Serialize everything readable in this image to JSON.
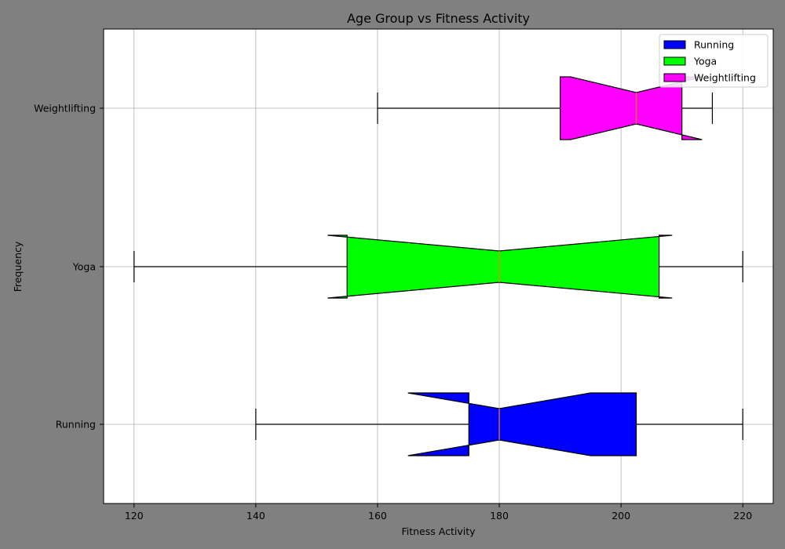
{
  "chart_data": {
    "type": "boxplot",
    "orientation": "horizontal",
    "notched": true,
    "title": "Age Group vs Fitness Activity",
    "xlabel": "Fitness Activity",
    "ylabel": "Frequency",
    "xlim": [
      115,
      225
    ],
    "xticks": [
      120,
      140,
      160,
      180,
      200,
      220
    ],
    "grid": true,
    "legend_position": "top-right",
    "background_color": "#808080",
    "plot_background": "#ffffff",
    "median_color": "#ff7f0e",
    "categories": [
      "Running",
      "Yoga",
      "Weightlifting"
    ],
    "series": [
      {
        "name": "Running",
        "color": "#0000ff",
        "whisker_low": 140,
        "q1": 175,
        "median": 180,
        "q3": 202.5,
        "whisker_high": 220,
        "notch_low": 165,
        "notch_high": 195
      },
      {
        "name": "Yoga",
        "color": "#00ff00",
        "whisker_low": 120,
        "q1": 155,
        "median": 180,
        "q3": 206.25,
        "whisker_high": 220,
        "notch_low": 151.8,
        "notch_high": 208.4
      },
      {
        "name": "Weightlifting",
        "color": "#ff00ff",
        "whisker_low": 160,
        "q1": 190,
        "median": 202.5,
        "q3": 210,
        "whisker_high": 215,
        "notch_low": 191.7,
        "notch_high": 213.3
      }
    ]
  }
}
